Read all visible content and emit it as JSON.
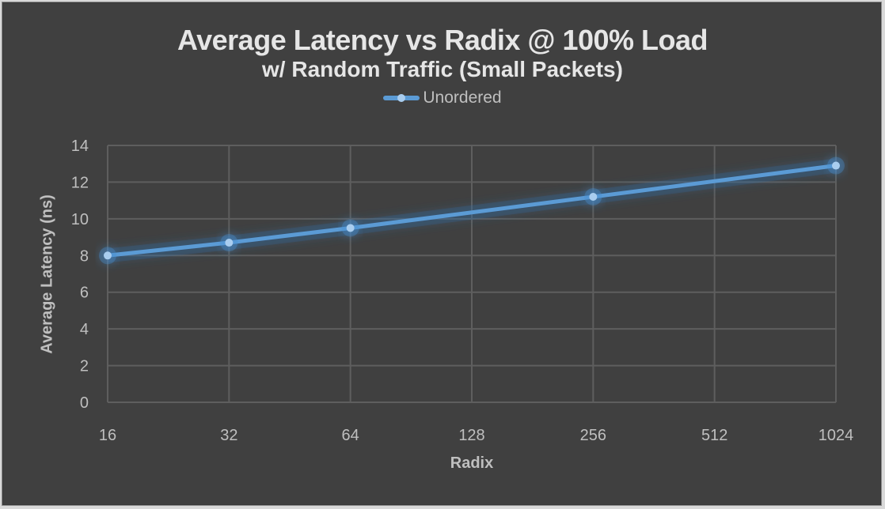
{
  "chart_data": {
    "type": "line",
    "title": "Average Latency vs Radix @ 100% Load",
    "subtitle": "w/ Random Traffic (Small Packets)",
    "xlabel": "Radix",
    "ylabel": "Average Latency (ns)",
    "categories": [
      "16",
      "32",
      "64",
      "128",
      "256",
      "512",
      "1024"
    ],
    "series": [
      {
        "name": "Unordered",
        "color": "#5b9bd5",
        "x": [
          "16",
          "32",
          "64",
          "256",
          "1024"
        ],
        "values": [
          8.0,
          8.7,
          9.5,
          11.2,
          12.9
        ]
      }
    ],
    "ylim": [
      0,
      14
    ],
    "yticks": [
      0,
      2,
      4,
      6,
      8,
      10,
      12,
      14
    ],
    "grid": true,
    "legend_position": "top",
    "background": "#404040"
  }
}
